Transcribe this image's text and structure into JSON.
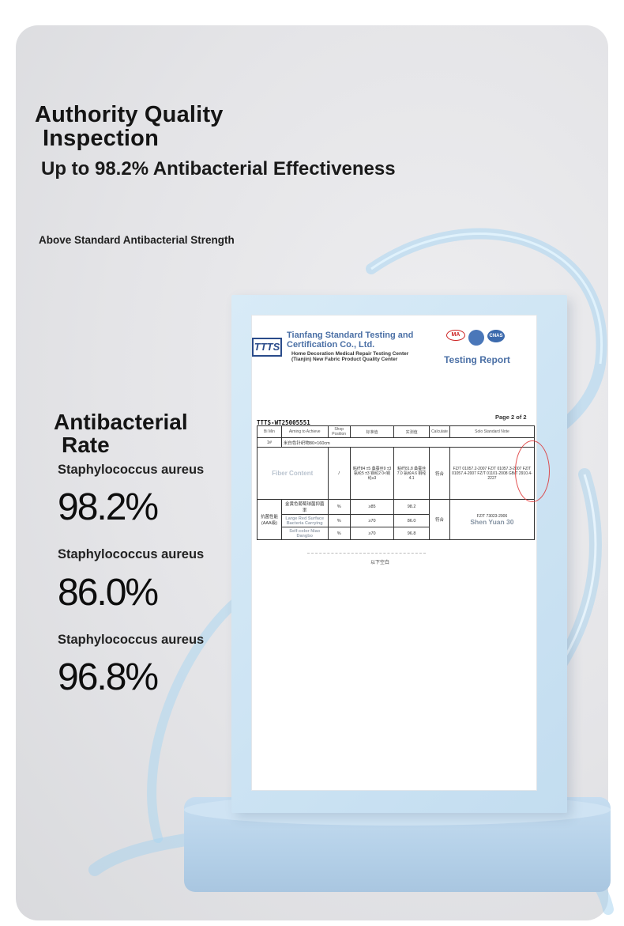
{
  "header": {
    "title_line1": "Authority Quality",
    "title_line2": "Inspection",
    "subtitle": "Up to 98.2% Antibacterial Effectiveness",
    "small_heading": "Above Standard Antibacterial Strength"
  },
  "antibacterial": {
    "title_line1": "Antibacterial",
    "title_line2": "Rate",
    "stats": [
      {
        "label": "Staphylococcus aureus",
        "value": "98.2%"
      },
      {
        "label": "Staphylococcus aureus",
        "value": "86.0%"
      },
      {
        "label": "Staphylococcus aureus",
        "value": "96.8%"
      }
    ]
  },
  "report": {
    "logo": "TTTS",
    "org_name": "Tianfang Standard Testing and Certification Co., Ltd.",
    "org_sub": "Home Decoration Medical Repair Testing Center (Tianjin) New Fabric Product Quality Center",
    "cert_ma": "MA",
    "cert_cnas": "CNAS",
    "title": "Testing Report",
    "report_no": "TTTS-WT25005551",
    "page": "Page 2 of 2",
    "headers": {
      "c1": "Bi Min",
      "c2": "Aiming to Achieve",
      "c3": "Shop Position",
      "c4": "标准值",
      "c5": "实测值",
      "c6": "Calculate",
      "c7": "Solo Standard Note"
    },
    "sample_row": {
      "no": "1#",
      "desc": "米白色针织物80×160cm"
    },
    "fiber_row": {
      "label": "Fiber Content",
      "sep": "/",
      "unit": "%",
      "standard": "粘纤84 ±5 桑蚕丝9 ±3 氨纶5 ±3 铜纶2 0<铜纶≤3",
      "measured": "粘纤81.8 桑蚕丝7.0 氨纶4.6 铜纶4.1",
      "result": "符合",
      "method": "FZ/T 01057.2-2007 FZ/T 01057.3-2007 FZ/T 01057.4-2007 FZ/T 01101-2008 GB/T 2910.4-2227"
    },
    "anti_rows": [
      {
        "group": "抗菌性能 (AAA级)",
        "item": "金黄色葡萄球菌抑菌率",
        "unit": "%",
        "standard": "≥85",
        "measured": "98.2"
      },
      {
        "item": "Large Red Surface Bacteria Carrying",
        "unit": "%",
        "standard": "≥70",
        "measured": "86.0"
      },
      {
        "item": "Self-color Niao Dangbo",
        "unit": "%",
        "standard": "≥70",
        "measured": "96.8"
      }
    ],
    "anti_result": "符合",
    "anti_method": "FZ/T 73023-2006",
    "signer": "Shen Yuan 30",
    "footer": "以下空白"
  }
}
